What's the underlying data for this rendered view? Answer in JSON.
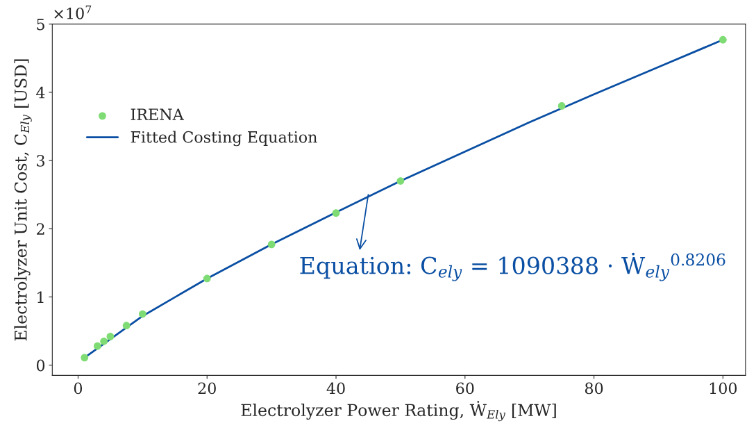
{
  "chart_data": {
    "type": "scatter",
    "xlabel": "Electrolyzer Power Rating, Ẇ$_{Ely}$ [MW]",
    "ylabel": "Electrolyzer Unit Cost, C$_{Ely}$ [USD]",
    "series": [
      {
        "name": "IRENA",
        "color": "#7fdc74",
        "marker": "circle",
        "x": [
          1,
          3,
          4,
          5,
          7.5,
          10,
          20,
          30,
          40,
          50,
          75,
          100
        ],
        "values": [
          0.11,
          0.28,
          0.35,
          0.42,
          0.58,
          0.75,
          1.27,
          1.77,
          2.23,
          2.7,
          3.8,
          4.77
        ]
      },
      {
        "name": "Fitted Costing Equation",
        "type": "line",
        "color": "#0a4fa3",
        "line_style": "solid",
        "marker": "none",
        "x": [
          1,
          10,
          20,
          30,
          40,
          50,
          60,
          70,
          80,
          90,
          100
        ],
        "values": [
          0.11,
          0.72,
          1.27,
          1.77,
          2.24,
          2.7,
          3.13,
          3.56,
          3.97,
          4.37,
          4.77
        ]
      }
    ],
    "xlim": [
      -4,
      103.5
    ],
    "ylim": [
      -0.15,
      5
    ],
    "xticks": [
      0,
      20,
      40,
      60,
      80,
      100
    ],
    "yticks": [
      0,
      1,
      2,
      3,
      4,
      5
    ],
    "annotations": [
      "×10$^{7}$",
      {
        "text": "Equation: C$_{ely}$ = 1090388 · Ẇ$_{ely}$$^{0.8206}$",
        "x": 45,
        "y": 2.5
      }
    ],
    "legend": "top left",
    "grid": false
  }
}
